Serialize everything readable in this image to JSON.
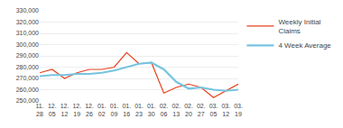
{
  "chart_data": {
    "type": "line",
    "categories": [
      "11.\n28",
      "12.\n05",
      "12.\n12",
      "12.\n19",
      "12.\n26",
      "01.\n02",
      "01.\n09",
      "01.\n16",
      "01.\n23",
      "01.\n30",
      "02.\n06",
      "02.\n13",
      "02.\n20",
      "02.\n27",
      "03.\n05",
      "03.\n12",
      "03.\n19"
    ],
    "series": [
      {
        "name": "Weekly Initial\nClaims",
        "color": "#e8401c",
        "values": [
          275000,
          278000,
          270000,
          275000,
          278000,
          278000,
          280000,
          293000,
          283000,
          284000,
          257000,
          262000,
          265000,
          262000,
          253000,
          259000,
          265000
        ]
      },
      {
        "name": "4 Week Average",
        "color": "#77c4e0",
        "values": [
          272000,
          273000,
          273000,
          274000,
          274000,
          275000,
          277000,
          280000,
          283000,
          284000,
          278000,
          267000,
          261000,
          262000,
          260000,
          259000,
          260000
        ]
      }
    ],
    "ylim": [
      250000,
      330000
    ],
    "yticks": [
      {
        "value": 250000,
        "label": "250,000"
      },
      {
        "value": 260000,
        "label": "260,000"
      },
      {
        "value": 270000,
        "label": "270,000"
      },
      {
        "value": 280000,
        "label": "280,000"
      },
      {
        "value": 290000,
        "label": "290,000"
      },
      {
        "value": 300000,
        "label": "300,000"
      },
      {
        "value": 310000,
        "label": "310,000"
      },
      {
        "value": 320000,
        "label": "320,000"
      },
      {
        "value": 330000,
        "label": "330,000"
      }
    ],
    "grid": true,
    "legend": "right"
  }
}
